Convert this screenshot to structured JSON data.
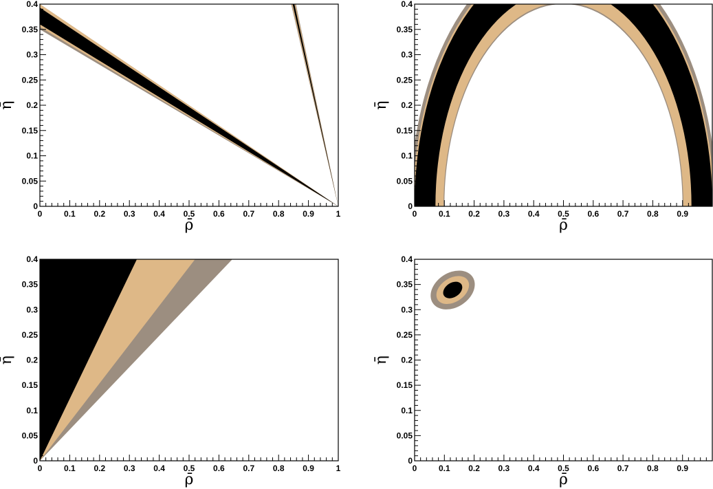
{
  "colors": {
    "outer_band": "#9c8e80",
    "middle_band": "#deb887",
    "inner_band": "#000000",
    "background": "#ffffff"
  },
  "chart_data": [
    {
      "type": "contour",
      "panel": "top-left",
      "xlabel": "ρ̄",
      "ylabel": "η̄",
      "xlim": [
        0,
        1
      ],
      "ylim": [
        0,
        0.4
      ],
      "x_ticks": [
        0,
        0.1,
        0.2,
        0.3,
        0.4,
        0.5,
        0.6,
        0.7,
        0.8,
        0.9,
        1
      ],
      "x_tick_labels": [
        "0",
        "0.1",
        "0.2",
        "0.3",
        "0.4",
        "0.5",
        "0.6",
        "0.7",
        "0.8",
        "0.9",
        "1"
      ],
      "y_ticks": [
        0,
        0.05,
        0.1,
        0.15,
        0.2,
        0.25,
        0.3,
        0.35,
        0.4
      ],
      "y_tick_labels": [
        "0",
        "0.05",
        "0.1",
        "0.15",
        "0.2",
        "0.25",
        "0.3",
        "0.35",
        "0.4"
      ],
      "regions": [
        {
          "level": "outer",
          "shape": "wedge",
          "apex": [
            1,
            0
          ],
          "boundary_at_x0": [
            0.35,
            0.4
          ]
        },
        {
          "level": "middle",
          "shape": "wedge",
          "apex": [
            1,
            0
          ],
          "boundary_at_x0": [
            0.355,
            0.4
          ]
        },
        {
          "level": "inner",
          "shape": "wedge",
          "apex": [
            1,
            0
          ],
          "boundary_at_x0": [
            0.36,
            0.393
          ]
        },
        {
          "level": "outer",
          "shape": "wedge",
          "apex": [
            1,
            0
          ],
          "boundary_at_ytop": [
            0.842,
            0.858
          ]
        },
        {
          "level": "middle",
          "shape": "wedge",
          "apex": [
            1,
            0
          ],
          "boundary_at_ytop": [
            0.844,
            0.856
          ]
        },
        {
          "level": "inner",
          "shape": "wedge",
          "apex": [
            1,
            0
          ],
          "boundary_at_ytop": [
            0.847,
            0.853
          ]
        }
      ]
    },
    {
      "type": "contour",
      "panel": "top-right",
      "xlabel": "ρ̄",
      "ylabel": "η̄",
      "xlim": [
        0,
        1
      ],
      "ylim": [
        0,
        0.4
      ],
      "x_ticks": [
        0,
        0.1,
        0.2,
        0.3,
        0.4,
        0.5,
        0.6,
        0.7,
        0.8,
        0.9
      ],
      "x_tick_labels": [
        "0",
        "0.1",
        "0.2",
        "0.3",
        "0.4",
        "0.5",
        "0.6",
        "0.7",
        "0.8",
        "0.9"
      ],
      "y_ticks": [
        0,
        0.05,
        0.1,
        0.15,
        0.2,
        0.25,
        0.3,
        0.35,
        0.4
      ],
      "y_tick_labels": [
        "0",
        "0.05",
        "0.1",
        "0.15",
        "0.2",
        "0.25",
        "0.3",
        "0.35",
        "0.4"
      ],
      "regions": [
        {
          "level": "outer",
          "shape": "circular-annulus",
          "center": [
            0.5,
            0
          ],
          "r_inner": 0.4,
          "r_outer": 0.515
        },
        {
          "level": "middle",
          "shape": "circular-annulus",
          "center": [
            0.5,
            0
          ],
          "r_inner": 0.403,
          "r_outer": 0.505
        },
        {
          "level": "inner",
          "shape": "circular-annulus",
          "center": [
            0.5,
            0
          ],
          "r_inner": 0.43,
          "r_outer": 0.5
        }
      ]
    },
    {
      "type": "contour",
      "panel": "bottom-left",
      "xlabel": "ρ̄",
      "ylabel": "η̄",
      "xlim": [
        0,
        1
      ],
      "ylim": [
        0,
        0.4
      ],
      "x_ticks": [
        0,
        0.1,
        0.2,
        0.3,
        0.4,
        0.5,
        0.6,
        0.7,
        0.8,
        0.9,
        1
      ],
      "x_tick_labels": [
        "0",
        "0.1",
        "0.2",
        "0.3",
        "0.4",
        "0.5",
        "0.6",
        "0.7",
        "0.8",
        "0.9",
        "1"
      ],
      "y_ticks": [
        0,
        0.05,
        0.1,
        0.15,
        0.2,
        0.25,
        0.3,
        0.35,
        0.4
      ],
      "y_tick_labels": [
        "0",
        "0.05",
        "0.1",
        "0.15",
        "0.2",
        "0.25",
        "0.3",
        "0.35",
        "0.4"
      ],
      "regions": [
        {
          "level": "outer",
          "shape": "wedge",
          "apex": [
            0,
            0
          ],
          "boundary_at_ytop": [
            0,
            0.645
          ]
        },
        {
          "level": "middle",
          "shape": "wedge",
          "apex": [
            0,
            0
          ],
          "boundary_at_ytop": [
            0,
            0.52
          ]
        },
        {
          "level": "inner",
          "shape": "wedge",
          "apex": [
            0,
            0
          ],
          "boundary_at_ytop": [
            0,
            0.325
          ]
        }
      ]
    },
    {
      "type": "contour",
      "panel": "bottom-right",
      "xlabel": "ρ̄",
      "ylabel": "η̄",
      "xlim": [
        0,
        1
      ],
      "ylim": [
        0,
        0.4
      ],
      "x_ticks": [
        0,
        0.1,
        0.2,
        0.3,
        0.4,
        0.5,
        0.6,
        0.7,
        0.8,
        0.9
      ],
      "x_tick_labels": [
        "0",
        "0.1",
        "0.2",
        "0.3",
        "0.4",
        "0.5",
        "0.6",
        "0.7",
        "0.8",
        "0.9"
      ],
      "y_ticks": [
        0,
        0.05,
        0.1,
        0.15,
        0.2,
        0.25,
        0.3,
        0.35,
        0.4
      ],
      "y_tick_labels": [
        "0",
        "0.05",
        "0.1",
        "0.15",
        "0.2",
        "0.25",
        "0.3",
        "0.35",
        "0.4"
      ],
      "regions": [
        {
          "level": "outer",
          "shape": "ellipse",
          "center": [
            0.128,
            0.339
          ],
          "rx": 0.08,
          "ry": 0.018,
          "angle": -33
        },
        {
          "level": "middle",
          "shape": "ellipse",
          "center": [
            0.128,
            0.339
          ],
          "rx": 0.06,
          "ry": 0.0125,
          "angle": -33
        },
        {
          "level": "inner",
          "shape": "ellipse",
          "center": [
            0.128,
            0.339
          ],
          "rx": 0.035,
          "ry": 0.0075,
          "angle": -33
        }
      ]
    }
  ]
}
